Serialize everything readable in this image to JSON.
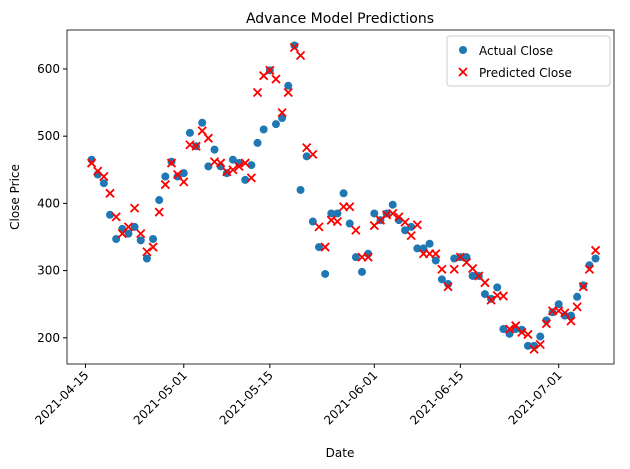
{
  "chart_data": {
    "type": "scatter",
    "title": "Advance Model Predictions",
    "xlabel": "Date",
    "ylabel": "Close Price",
    "x": [
      "2021-04-16",
      "2021-04-17",
      "2021-04-18",
      "2021-04-19",
      "2021-04-20",
      "2021-04-21",
      "2021-04-22",
      "2021-04-23",
      "2021-04-24",
      "2021-04-25",
      "2021-04-26",
      "2021-04-27",
      "2021-04-28",
      "2021-04-29",
      "2021-04-30",
      "2021-05-01",
      "2021-05-02",
      "2021-05-03",
      "2021-05-04",
      "2021-05-05",
      "2021-05-06",
      "2021-05-07",
      "2021-05-08",
      "2021-05-09",
      "2021-05-10",
      "2021-05-11",
      "2021-05-12",
      "2021-05-13",
      "2021-05-14",
      "2021-05-15",
      "2021-05-16",
      "2021-05-17",
      "2021-05-18",
      "2021-05-19",
      "2021-05-20",
      "2021-05-21",
      "2021-05-22",
      "2021-05-23",
      "2021-05-24",
      "2021-05-25",
      "2021-05-26",
      "2021-05-27",
      "2021-05-28",
      "2021-05-29",
      "2021-05-30",
      "2021-05-31",
      "2021-06-01",
      "2021-06-02",
      "2021-06-03",
      "2021-06-04",
      "2021-06-05",
      "2021-06-06",
      "2021-06-07",
      "2021-06-08",
      "2021-06-09",
      "2021-06-10",
      "2021-06-11",
      "2021-06-12",
      "2021-06-13",
      "2021-06-14",
      "2021-06-15",
      "2021-06-16",
      "2021-06-17",
      "2021-06-18",
      "2021-06-19",
      "2021-06-20",
      "2021-06-21",
      "2021-06-22",
      "2021-06-23",
      "2021-06-24",
      "2021-06-25",
      "2021-06-26",
      "2021-06-27",
      "2021-06-28",
      "2021-06-29",
      "2021-06-30",
      "2021-07-01",
      "2021-07-02",
      "2021-07-03",
      "2021-07-04",
      "2021-07-05",
      "2021-07-06",
      "2021-07-07"
    ],
    "series": [
      {
        "name": "Actual Close",
        "color": "#1f77b4",
        "marker": "circle",
        "values": [
          465,
          443,
          430,
          383,
          347,
          362,
          355,
          365,
          345,
          318,
          347,
          405,
          440,
          462,
          440,
          445,
          505,
          485,
          520,
          455,
          480,
          455,
          445,
          465,
          460,
          435,
          457,
          490,
          510,
          598,
          518,
          527,
          575,
          635,
          420,
          470,
          373,
          335,
          295,
          385,
          385,
          415,
          370,
          320,
          298,
          325,
          385,
          375,
          385,
          398,
          375,
          360,
          365,
          333,
          333,
          340,
          315,
          287,
          280,
          318,
          320,
          320,
          292,
          292,
          265,
          258,
          275,
          213,
          206,
          213,
          212,
          188,
          188,
          202,
          226,
          238,
          250,
          233,
          233,
          261,
          278,
          308,
          318
        ]
      },
      {
        "name": "Predicted Close",
        "color": "#ff0000",
        "marker": "x",
        "values": [
          460,
          448,
          440,
          415,
          380,
          355,
          365,
          393,
          355,
          328,
          335,
          387,
          428,
          460,
          443,
          432,
          487,
          485,
          508,
          497,
          462,
          460,
          447,
          450,
          455,
          460,
          438,
          565,
          590,
          598,
          585,
          535,
          565,
          632,
          620,
          483,
          473,
          365,
          335,
          375,
          373,
          395,
          395,
          360,
          320,
          320,
          367,
          375,
          383,
          385,
          380,
          372,
          352,
          368,
          325,
          325,
          325,
          302,
          276,
          302,
          320,
          312,
          303,
          292,
          282,
          256,
          263,
          262,
          213,
          218,
          208,
          205,
          183,
          190,
          221,
          240,
          240,
          237,
          225,
          246,
          276,
          302,
          330
        ]
      }
    ],
    "xlim": [
      "2021-04-12",
      "2021-07-10"
    ],
    "xticks": [
      "2021-04-15",
      "2021-05-01",
      "2021-05-15",
      "2021-06-01",
      "2021-06-15",
      "2021-07-01"
    ],
    "ylim": [
      161,
      658
    ],
    "yticks": [
      200,
      300,
      400,
      500,
      600
    ],
    "legend": "upper right"
  }
}
